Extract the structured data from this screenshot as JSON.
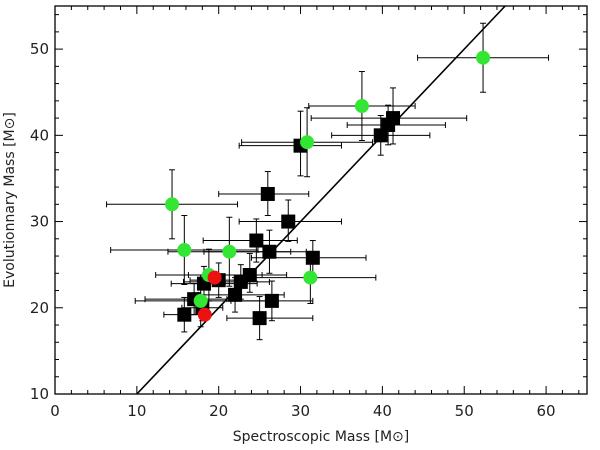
{
  "chart_data": {
    "type": "scatter",
    "xlabel": "Spectroscopic Mass [M⊙]",
    "ylabel": "Evolutionnary Mass [M⊙]",
    "xlim": [
      0,
      65
    ],
    "ylim": [
      10,
      55
    ],
    "x_ticks": [
      0,
      10,
      20,
      30,
      40,
      50,
      60
    ],
    "y_ticks": [
      10,
      20,
      30,
      40,
      50
    ],
    "x_minor_step": 2,
    "y_minor_step": 2,
    "grid": false,
    "reference_line": {
      "label": "",
      "points": [
        [
          10,
          10
        ],
        [
          55,
          55
        ]
      ]
    },
    "series": [
      {
        "marker": "square",
        "color": "#000000",
        "points": [
          {
            "x": 26.0,
            "y": 33.2,
            "xerr": [
              6.0,
              5.0
            ],
            "yerr": [
              2.5,
              2.6
            ]
          },
          {
            "x": 28.5,
            "y": 30.0,
            "xerr": [
              6.0,
              6.5
            ],
            "yerr": [
              2.3,
              2.5
            ]
          },
          {
            "x": 24.6,
            "y": 27.8,
            "xerr": [
              6.5,
              5.0
            ],
            "yerr": [
              2.5,
              2.5
            ]
          },
          {
            "x": 26.2,
            "y": 26.5,
            "xerr": [
              8.0,
              4.5
            ],
            "yerr": [
              2.5,
              2.5
            ]
          },
          {
            "x": 31.5,
            "y": 25.8,
            "xerr": [
              7.5,
              6.5
            ],
            "yerr": [
              2.0,
              2.0
            ]
          },
          {
            "x": 23.8,
            "y": 23.8,
            "xerr": [
              7.5,
              4.5
            ],
            "yerr": [
              2.0,
              2.5
            ]
          },
          {
            "x": 22.7,
            "y": 23.0,
            "xerr": [
              7.0,
              3.5
            ],
            "yerr": [
              2.0,
              2.0
            ]
          },
          {
            "x": 20.0,
            "y": 23.2,
            "xerr": [
              3.5,
              3.5
            ],
            "yerr": [
              2.0,
              2.0
            ]
          },
          {
            "x": 18.2,
            "y": 22.8,
            "xerr": [
              4.0,
              6.5
            ],
            "yerr": [
              2.0,
              2.0
            ]
          },
          {
            "x": 22.0,
            "y": 21.5,
            "xerr": [
              4.5,
              6.0
            ],
            "yerr": [
              2.0,
              2.0
            ]
          },
          {
            "x": 17.0,
            "y": 21.0,
            "xerr": [
              6.0,
              4.0
            ],
            "yerr": [
              1.8,
              1.8
            ]
          },
          {
            "x": 18.0,
            "y": 20.0,
            "xerr": [
              2.5,
              2.5
            ],
            "yerr": [
              1.5,
              1.5
            ]
          },
          {
            "x": 26.5,
            "y": 20.8,
            "xerr": [
              5.0,
              5.0
            ],
            "yerr": [
              2.3,
              2.3
            ]
          },
          {
            "x": 15.8,
            "y": 19.2,
            "xerr": [
              2.5,
              3.0
            ],
            "yerr": [
              2.0,
              2.0
            ]
          },
          {
            "x": 25.0,
            "y": 18.8,
            "xerr": [
              4.0,
              6.5
            ],
            "yerr": [
              2.5,
              2.5
            ]
          },
          {
            "x": 30.0,
            "y": 38.8,
            "xerr": [
              7.5,
              5.0
            ],
            "yerr": [
              3.5,
              4.0
            ]
          },
          {
            "x": 39.8,
            "y": 40.0,
            "xerr": [
              6.0,
              6.0
            ],
            "yerr": [
              2.3,
              2.3
            ]
          },
          {
            "x": 40.7,
            "y": 41.2,
            "xerr": [
              5.0,
              7.0
            ],
            "yerr": [
              2.3,
              2.3
            ]
          },
          {
            "x": 41.3,
            "y": 42.0,
            "xerr": [
              10.0,
              9.0
            ],
            "yerr": [
              3.0,
              3.5
            ]
          }
        ]
      },
      {
        "marker": "circle",
        "color": "#33e633",
        "points": [
          {
            "x": 52.3,
            "y": 49.0,
            "xerr": [
              8.0,
              8.0
            ],
            "yerr": [
              4.0,
              4.0
            ]
          },
          {
            "x": 37.5,
            "y": 43.4,
            "xerr": [
              6.5,
              6.5
            ],
            "yerr": [
              4.0,
              4.0
            ]
          },
          {
            "x": 30.8,
            "y": 39.2,
            "xerr": [
              8.0,
              8.0
            ],
            "yerr": [
              4.0,
              4.0
            ]
          },
          {
            "x": 14.3,
            "y": 32.0,
            "xerr": [
              8.0,
              8.0
            ],
            "yerr": [
              4.0,
              4.0
            ]
          },
          {
            "x": 15.8,
            "y": 26.7,
            "xerr": [
              9.0,
              9.0
            ],
            "yerr": [
              4.0,
              4.0
            ]
          },
          {
            "x": 21.3,
            "y": 26.5,
            "xerr": [
              7.5,
              7.5
            ],
            "yerr": [
              4.0,
              4.0
            ]
          },
          {
            "x": 18.8,
            "y": 23.8,
            "xerr": [
              6.5,
              6.5
            ],
            "yerr": [
              3.0,
              3.0
            ]
          },
          {
            "x": 31.2,
            "y": 23.5,
            "xerr": [
              8.0,
              8.0
            ],
            "yerr": [
              3.0,
              3.0
            ]
          },
          {
            "x": 17.8,
            "y": 20.8,
            "xerr": [
              8.0,
              8.0
            ],
            "yerr": [
              3.0,
              3.0
            ]
          }
        ]
      },
      {
        "marker": "circle",
        "color": "#ee1111",
        "points": [
          {
            "x": 19.5,
            "y": 23.5,
            "xerr": [
              0,
              0
            ],
            "yerr": [
              0,
              0
            ]
          },
          {
            "x": 18.3,
            "y": 19.2,
            "xerr": [
              0,
              0
            ],
            "yerr": [
              0,
              0
            ]
          }
        ]
      }
    ]
  }
}
